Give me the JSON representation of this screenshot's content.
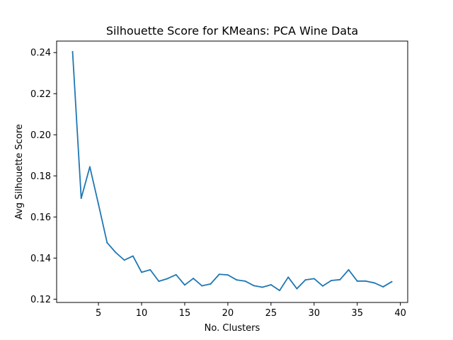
{
  "chart_data": {
    "type": "line",
    "title": "Silhouette Score for KMeans: PCA Wine Data",
    "xlabel": "No. Clusters",
    "ylabel": "Avg Silhouette Score",
    "xlim": [
      0.15,
      40.85
    ],
    "ylim": [
      0.1184,
      0.2456
    ],
    "xticks": [
      5,
      10,
      15,
      20,
      25,
      30,
      35,
      40
    ],
    "xtick_labels": [
      "5",
      "10",
      "15",
      "20",
      "25",
      "30",
      "35",
      "40"
    ],
    "yticks": [
      0.12,
      0.14,
      0.16,
      0.18,
      0.2,
      0.22,
      0.24
    ],
    "ytick_labels": [
      "0.12",
      "0.14",
      "0.16",
      "0.18",
      "0.20",
      "0.22",
      "0.24"
    ],
    "grid": false,
    "series": [
      {
        "color": "#1f77b4",
        "x": [
          2,
          3,
          4,
          5,
          6,
          7,
          8,
          9,
          10,
          11,
          12,
          13,
          14,
          15,
          16,
          17,
          18,
          19,
          20,
          21,
          22,
          23,
          24,
          25,
          26,
          27,
          28,
          29,
          30,
          31,
          32,
          33,
          34,
          35,
          36,
          37,
          38,
          39
        ],
        "y": [
          0.2404,
          0.1691,
          0.1844,
          0.1662,
          0.1475,
          0.1427,
          0.139,
          0.141,
          0.1331,
          0.1343,
          0.1287,
          0.13,
          0.1319,
          0.1269,
          0.1301,
          0.1265,
          0.1274,
          0.1321,
          0.1318,
          0.1294,
          0.1288,
          0.1266,
          0.1258,
          0.127,
          0.1242,
          0.1307,
          0.1251,
          0.1294,
          0.13,
          0.1264,
          0.1291,
          0.1295,
          0.1343,
          0.1288,
          0.1288,
          0.1279,
          0.126,
          0.1285
        ]
      }
    ]
  }
}
